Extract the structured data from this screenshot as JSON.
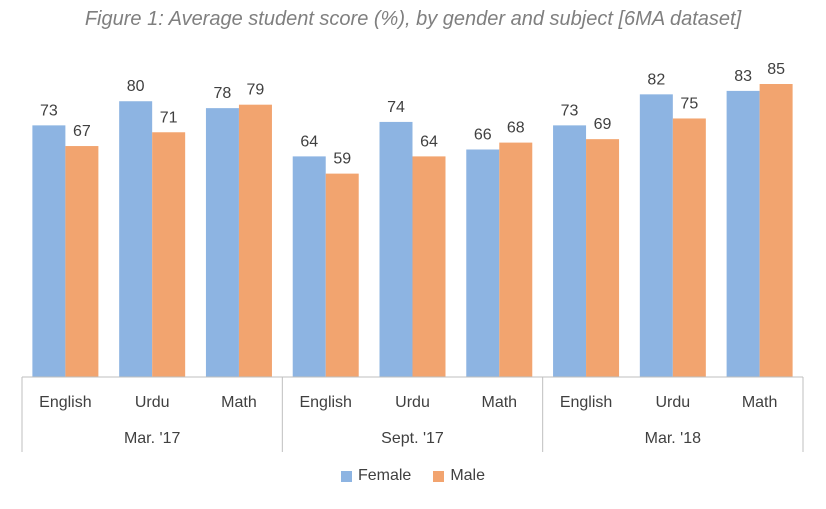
{
  "chart_data": {
    "type": "bar",
    "title": "Figure 1: Average student score (%), by gender and subject [6MA dataset]",
    "groups": [
      {
        "label": "Mar. '17",
        "categories": [
          "English",
          "Urdu",
          "Math"
        ]
      },
      {
        "label": "Sept. '17",
        "categories": [
          "English",
          "Urdu",
          "Math"
        ]
      },
      {
        "label": "Mar. '18",
        "categories": [
          "English",
          "Urdu",
          "Math"
        ]
      }
    ],
    "series": [
      {
        "name": "Female",
        "color": "#8db4e2",
        "values": [
          73,
          80,
          78,
          64,
          74,
          66,
          73,
          82,
          83
        ]
      },
      {
        "name": "Male",
        "color": "#f2a46f",
        "values": [
          67,
          71,
          79,
          59,
          64,
          68,
          69,
          75,
          85
        ]
      }
    ],
    "ylim": [
      0,
      85
    ],
    "grid": false,
    "legend_position": "bottom"
  }
}
